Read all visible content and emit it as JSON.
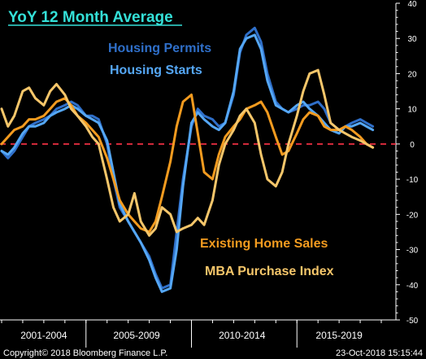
{
  "chart_data": {
    "type": "line",
    "title": "YoY 12 Month Average",
    "x_categories": [
      "2001-2004",
      "2005-2009",
      "2010-2014",
      "2015-2019"
    ],
    "ylim": [
      -50,
      40
    ],
    "yticks": [
      40,
      30,
      20,
      10,
      0,
      -10,
      -20,
      -30,
      -40,
      -50
    ],
    "zero_line": true,
    "grid": false,
    "x_start": 2001.0,
    "x_end": 2019.0,
    "colors": {
      "title": "#34e0d8",
      "permits": "#2f6fc9",
      "starts": "#55a7f5",
      "existing": "#f39b1f",
      "mba": "#f5c66a",
      "zero": "#ff3347",
      "axis": "#ffffff",
      "background": "#000000"
    },
    "series": [
      {
        "name": "Housing Permits",
        "color_key": "permits",
        "points": [
          [
            2001.0,
            -2
          ],
          [
            2001.3,
            -4
          ],
          [
            2001.6,
            -2
          ],
          [
            2002.0,
            2
          ],
          [
            2002.3,
            5
          ],
          [
            2002.6,
            6
          ],
          [
            2003.0,
            7
          ],
          [
            2003.3,
            8
          ],
          [
            2003.6,
            10
          ],
          [
            2004.0,
            11
          ],
          [
            2004.3,
            12
          ],
          [
            2004.6,
            11
          ],
          [
            2005.0,
            8
          ],
          [
            2005.3,
            8
          ],
          [
            2005.6,
            7
          ],
          [
            2006.0,
            0
          ],
          [
            2006.3,
            -10
          ],
          [
            2006.6,
            -18
          ],
          [
            2007.0,
            -22
          ],
          [
            2007.3,
            -25
          ],
          [
            2007.6,
            -28
          ],
          [
            2008.0,
            -32
          ],
          [
            2008.3,
            -37
          ],
          [
            2008.6,
            -41
          ],
          [
            2009.0,
            -40
          ],
          [
            2009.3,
            -25
          ],
          [
            2009.6,
            -10
          ],
          [
            2010.0,
            5
          ],
          [
            2010.3,
            10
          ],
          [
            2010.6,
            8
          ],
          [
            2011.0,
            7
          ],
          [
            2011.3,
            5
          ],
          [
            2011.6,
            6
          ],
          [
            2012.0,
            14
          ],
          [
            2012.3,
            26
          ],
          [
            2012.6,
            31
          ],
          [
            2013.0,
            33
          ],
          [
            2013.3,
            29
          ],
          [
            2013.6,
            20
          ],
          [
            2014.0,
            12
          ],
          [
            2014.3,
            10
          ],
          [
            2014.6,
            9
          ],
          [
            2015.0,
            10
          ],
          [
            2015.3,
            11
          ],
          [
            2015.6,
            11
          ],
          [
            2016.0,
            12
          ],
          [
            2016.3,
            10
          ],
          [
            2016.6,
            6
          ],
          [
            2017.0,
            4
          ],
          [
            2017.3,
            5
          ],
          [
            2017.6,
            6
          ],
          [
            2018.0,
            7
          ],
          [
            2018.3,
            6
          ],
          [
            2018.6,
            5
          ]
        ]
      },
      {
        "name": "Housing Starts",
        "color_key": "starts",
        "points": [
          [
            2001.0,
            -2
          ],
          [
            2001.3,
            -3
          ],
          [
            2001.6,
            -1
          ],
          [
            2002.0,
            3
          ],
          [
            2002.3,
            5
          ],
          [
            2002.6,
            5
          ],
          [
            2003.0,
            6
          ],
          [
            2003.3,
            8
          ],
          [
            2003.6,
            9
          ],
          [
            2004.0,
            10
          ],
          [
            2004.3,
            11
          ],
          [
            2004.6,
            10
          ],
          [
            2005.0,
            8
          ],
          [
            2005.3,
            7
          ],
          [
            2005.6,
            6
          ],
          [
            2006.0,
            1
          ],
          [
            2006.3,
            -8
          ],
          [
            2006.6,
            -17
          ],
          [
            2007.0,
            -22
          ],
          [
            2007.3,
            -25
          ],
          [
            2007.6,
            -28
          ],
          [
            2008.0,
            -33
          ],
          [
            2008.3,
            -38
          ],
          [
            2008.6,
            -42
          ],
          [
            2009.0,
            -41
          ],
          [
            2009.3,
            -30
          ],
          [
            2009.6,
            -12
          ],
          [
            2010.0,
            6
          ],
          [
            2010.3,
            9
          ],
          [
            2010.6,
            7
          ],
          [
            2011.0,
            5
          ],
          [
            2011.3,
            4
          ],
          [
            2011.6,
            6
          ],
          [
            2012.0,
            15
          ],
          [
            2012.3,
            27
          ],
          [
            2012.6,
            30
          ],
          [
            2013.0,
            31
          ],
          [
            2013.3,
            27
          ],
          [
            2013.6,
            18
          ],
          [
            2014.0,
            11
          ],
          [
            2014.3,
            10
          ],
          [
            2014.6,
            9
          ],
          [
            2015.0,
            11
          ],
          [
            2015.3,
            12
          ],
          [
            2015.6,
            10
          ],
          [
            2016.0,
            8
          ],
          [
            2016.3,
            6
          ],
          [
            2016.6,
            4
          ],
          [
            2017.0,
            3
          ],
          [
            2017.3,
            5
          ],
          [
            2017.6,
            5
          ],
          [
            2018.0,
            6
          ],
          [
            2018.3,
            5
          ],
          [
            2018.6,
            4
          ]
        ]
      },
      {
        "name": "Existing Home Sales",
        "color_key": "existing",
        "points": [
          [
            2001.0,
            0
          ],
          [
            2001.3,
            2
          ],
          [
            2001.6,
            4
          ],
          [
            2002.0,
            5
          ],
          [
            2002.3,
            7
          ],
          [
            2002.6,
            7
          ],
          [
            2003.0,
            8
          ],
          [
            2003.3,
            10
          ],
          [
            2003.6,
            12
          ],
          [
            2004.0,
            13
          ],
          [
            2004.3,
            11
          ],
          [
            2004.6,
            8
          ],
          [
            2005.0,
            6
          ],
          [
            2005.3,
            4
          ],
          [
            2005.6,
            2
          ],
          [
            2006.0,
            -4
          ],
          [
            2006.3,
            -10
          ],
          [
            2006.6,
            -16
          ],
          [
            2007.0,
            -20
          ],
          [
            2007.3,
            -22
          ],
          [
            2007.6,
            -24
          ],
          [
            2008.0,
            -25
          ],
          [
            2008.3,
            -22
          ],
          [
            2008.6,
            -15
          ],
          [
            2009.0,
            -5
          ],
          [
            2009.3,
            5
          ],
          [
            2009.6,
            12
          ],
          [
            2010.0,
            14
          ],
          [
            2010.3,
            3
          ],
          [
            2010.6,
            -8
          ],
          [
            2011.0,
            -10
          ],
          [
            2011.3,
            -3
          ],
          [
            2011.6,
            2
          ],
          [
            2012.0,
            5
          ],
          [
            2012.3,
            7
          ],
          [
            2012.6,
            10
          ],
          [
            2013.0,
            11
          ],
          [
            2013.3,
            12
          ],
          [
            2013.6,
            9
          ],
          [
            2014.0,
            2
          ],
          [
            2014.3,
            -3
          ],
          [
            2014.6,
            -2
          ],
          [
            2015.0,
            3
          ],
          [
            2015.3,
            7
          ],
          [
            2015.6,
            9
          ],
          [
            2016.0,
            8
          ],
          [
            2016.3,
            5
          ],
          [
            2016.6,
            4
          ],
          [
            2017.0,
            4
          ],
          [
            2017.3,
            5
          ],
          [
            2017.6,
            4
          ],
          [
            2018.0,
            2
          ],
          [
            2018.3,
            0
          ],
          [
            2018.6,
            -1
          ]
        ]
      },
      {
        "name": "MBA Purchase Index",
        "color_key": "mba",
        "points": [
          [
            2001.0,
            10
          ],
          [
            2001.3,
            5
          ],
          [
            2001.6,
            8
          ],
          [
            2002.0,
            15
          ],
          [
            2002.3,
            16
          ],
          [
            2002.6,
            13
          ],
          [
            2003.0,
            11
          ],
          [
            2003.3,
            15
          ],
          [
            2003.6,
            17
          ],
          [
            2004.0,
            14
          ],
          [
            2004.3,
            10
          ],
          [
            2004.6,
            8
          ],
          [
            2005.0,
            5
          ],
          [
            2005.3,
            2
          ],
          [
            2005.6,
            0
          ],
          [
            2006.0,
            -10
          ],
          [
            2006.3,
            -18
          ],
          [
            2006.6,
            -22
          ],
          [
            2007.0,
            -20
          ],
          [
            2007.3,
            -14
          ],
          [
            2007.6,
            -22
          ],
          [
            2008.0,
            -26
          ],
          [
            2008.3,
            -24
          ],
          [
            2008.6,
            -18
          ],
          [
            2009.0,
            -20
          ],
          [
            2009.3,
            -25
          ],
          [
            2009.6,
            -24
          ],
          [
            2010.0,
            -23
          ],
          [
            2010.3,
            -21
          ],
          [
            2010.6,
            -23
          ],
          [
            2011.0,
            -16
          ],
          [
            2011.3,
            -6
          ],
          [
            2011.6,
            0
          ],
          [
            2012.0,
            4
          ],
          [
            2012.3,
            8
          ],
          [
            2012.6,
            10
          ],
          [
            2013.0,
            6
          ],
          [
            2013.3,
            -3
          ],
          [
            2013.6,
            -10
          ],
          [
            2014.0,
            -12
          ],
          [
            2014.3,
            -8
          ],
          [
            2014.6,
            0
          ],
          [
            2015.0,
            8
          ],
          [
            2015.3,
            15
          ],
          [
            2015.6,
            20
          ],
          [
            2016.0,
            21
          ],
          [
            2016.3,
            14
          ],
          [
            2016.6,
            6
          ],
          [
            2017.0,
            4
          ],
          [
            2017.3,
            3
          ],
          [
            2017.6,
            2
          ],
          [
            2018.0,
            1
          ],
          [
            2018.3,
            0
          ],
          [
            2018.6,
            -1
          ]
        ]
      }
    ],
    "legend": [
      {
        "label": "Housing Permits",
        "color_key": "permits"
      },
      {
        "label": "Housing Starts",
        "color_key": "starts"
      },
      {
        "label": "Existing Home Sales",
        "color_key": "existing"
      },
      {
        "label": "MBA Purchase Index",
        "color_key": "mba"
      }
    ]
  },
  "footer": {
    "left": "Copyright© 2018 Bloomberg Finance L.P.",
    "right": "23-Oct-2018 15:15:44"
  }
}
